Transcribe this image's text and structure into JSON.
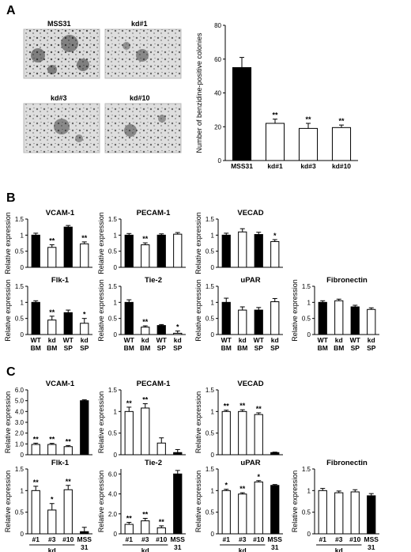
{
  "panels": {
    "A": "A",
    "B": "B",
    "C": "C"
  },
  "photos": [
    "MSS31",
    "kd#1",
    "kd#3",
    "kd#10"
  ],
  "sig": "**",
  "sig1": "*",
  "chart_data": [
    {
      "id": "A",
      "type": "bar",
      "ylabel": "Number of benzidine-positive colonies",
      "ylim": [
        0,
        80
      ],
      "yticks": [
        0,
        20,
        40,
        60,
        80
      ],
      "categories": [
        "MSS31",
        "kd#1",
        "kd#3",
        "kd#10"
      ],
      "values": [
        55,
        22,
        19,
        19.5
      ],
      "errors": [
        6,
        2.5,
        3,
        1.5
      ],
      "fills": [
        "#000000",
        "#ffffff",
        "#ffffff",
        "#ffffff"
      ],
      "significance": [
        "",
        "**",
        "**",
        "**"
      ]
    },
    {
      "id": "B",
      "type": "bar",
      "ylabel": "Relative expression",
      "categories_top": [
        "WT",
        "kd",
        "WT",
        "kd"
      ],
      "categories_bottom": [
        "BM",
        "BM",
        "SP",
        "SP"
      ],
      "fills": [
        "#000000",
        "#ffffff",
        "#000000",
        "#ffffff"
      ],
      "subplots": [
        {
          "title": "VCAM-1",
          "ylim": [
            0,
            1.5
          ],
          "yticks": [
            0,
            0.5,
            1.0,
            1.5
          ],
          "values": [
            1.0,
            0.62,
            1.25,
            0.73
          ],
          "errors": [
            0.06,
            0.08,
            0.05,
            0.06
          ],
          "significance": [
            "",
            "**",
            "",
            "**"
          ]
        },
        {
          "title": "PECAM-1",
          "ylim": [
            0,
            1.5
          ],
          "yticks": [
            0,
            0.5,
            1.0,
            1.5
          ],
          "values": [
            1.0,
            0.7,
            1.0,
            1.03
          ],
          "errors": [
            0.05,
            0.06,
            0.04,
            0.05
          ],
          "significance": [
            "",
            "**",
            "",
            ""
          ]
        },
        {
          "title": "VECAD",
          "ylim": [
            0,
            1.5
          ],
          "yticks": [
            0,
            0.5,
            1.0,
            1.5
          ],
          "values": [
            1.0,
            1.1,
            1.02,
            0.8
          ],
          "errors": [
            0.06,
            0.1,
            0.07,
            0.06
          ],
          "significance": [
            "",
            "",
            "",
            "*"
          ]
        },
        {
          "title": "Flk-1",
          "ylim": [
            0,
            1.5
          ],
          "yticks": [
            0,
            0.5,
            1.0,
            1.5
          ],
          "values": [
            1.0,
            0.45,
            0.68,
            0.35
          ],
          "errors": [
            0.05,
            0.12,
            0.08,
            0.15
          ],
          "significance": [
            "",
            "**",
            "",
            "*"
          ]
        },
        {
          "title": "Tie-2",
          "ylim": [
            0,
            1.5
          ],
          "yticks": [
            0,
            0.5,
            1.0,
            1.5
          ],
          "values": [
            1.0,
            0.23,
            0.28,
            0.04
          ],
          "errors": [
            0.08,
            0.04,
            0.03,
            0.07
          ],
          "significance": [
            "",
            "**",
            "",
            "*"
          ]
        },
        {
          "title": "uPAR",
          "ylim": [
            0,
            1.5
          ],
          "yticks": [
            0,
            0.5,
            1.0,
            1.5
          ],
          "values": [
            1.0,
            0.76,
            0.76,
            1.02
          ],
          "errors": [
            0.13,
            0.1,
            0.08,
            0.1
          ],
          "significance": [
            "",
            "",
            "",
            ""
          ]
        },
        {
          "title": "Fibronectin",
          "ylim": [
            0,
            1.5
          ],
          "yticks": [
            0,
            0.5,
            1.0,
            1.5
          ],
          "values": [
            1.0,
            1.05,
            0.86,
            0.78
          ],
          "errors": [
            0.05,
            0.05,
            0.05,
            0.05
          ],
          "significance": [
            "",
            "",
            "",
            ""
          ]
        }
      ]
    },
    {
      "id": "C",
      "type": "bar",
      "ylabel": "Relative expression",
      "categories": [
        "#1",
        "#3",
        "#10",
        "MSS"
      ],
      "categories_second_line": [
        "",
        "",
        "",
        "31"
      ],
      "group_label": "kd",
      "fills": [
        "#ffffff",
        "#ffffff",
        "#ffffff",
        "#000000"
      ],
      "subplots": [
        {
          "title": "VCAM-1",
          "ylim": [
            0,
            6
          ],
          "yticks": [
            0,
            1.0,
            2.0,
            3.0,
            4.0,
            5.0,
            6.0
          ],
          "ytick_labels": [
            "0",
            "1.0",
            "2.0",
            "3.0",
            "4.0",
            "5.0",
            "6.0"
          ],
          "values": [
            0.95,
            0.95,
            0.75,
            5.0
          ],
          "errors": [
            0.12,
            0.1,
            0.1,
            0.08
          ],
          "significance": [
            "**",
            "**",
            "**",
            ""
          ]
        },
        {
          "title": "PECAM-1",
          "ylim": [
            0,
            1.5
          ],
          "yticks": [
            0,
            0.5,
            1.0,
            1.5
          ],
          "values": [
            1.0,
            1.08,
            0.27,
            0.05
          ],
          "errors": [
            0.1,
            0.1,
            0.12,
            0.07
          ],
          "significance": [
            "**",
            "**",
            "",
            ""
          ]
        },
        {
          "title": "VECAD",
          "ylim": [
            0,
            1.5
          ],
          "yticks": [
            0,
            0.5,
            1.0,
            1.5
          ],
          "values": [
            1.0,
            1.0,
            0.93,
            0.05
          ],
          "errors": [
            0.03,
            0.04,
            0.04,
            0.01
          ],
          "significance": [
            "**",
            "**",
            "**",
            ""
          ]
        },
        {
          "title": "Flk-1",
          "ylim": [
            0,
            1.5
          ],
          "yticks": [
            0,
            0.5,
            1.0,
            1.5
          ],
          "values": [
            1.0,
            0.55,
            1.02,
            0.05
          ],
          "errors": [
            0.1,
            0.15,
            0.1,
            0.1
          ],
          "significance": [
            "**",
            "*",
            "**",
            ""
          ]
        },
        {
          "title": "Tie-2",
          "ylim": [
            0,
            6.5
          ],
          "yticks": [
            0,
            2.0,
            4.0,
            6.0
          ],
          "ytick_labels": [
            "0",
            "2.0",
            "4.0",
            "6.0"
          ],
          "values": [
            0.95,
            1.3,
            0.6,
            6.0
          ],
          "errors": [
            0.2,
            0.25,
            0.2,
            0.35
          ],
          "significance": [
            "**",
            "**",
            "**",
            ""
          ]
        },
        {
          "title": "uPAR",
          "ylim": [
            0,
            1.5
          ],
          "yticks": [
            0,
            0.5,
            1.0,
            1.5
          ],
          "values": [
            1.0,
            0.92,
            1.2,
            1.12
          ],
          "errors": [
            0.03,
            0.03,
            0.03,
            0.02
          ],
          "significance": [
            "*",
            "**",
            "*",
            ""
          ]
        },
        {
          "title": "Fibronectin",
          "ylim": [
            0,
            1.5
          ],
          "yticks": [
            0,
            0.5,
            1.0,
            1.5
          ],
          "values": [
            1.0,
            0.95,
            0.97,
            0.88
          ],
          "errors": [
            0.05,
            0.04,
            0.05,
            0.05
          ],
          "significance": [
            "",
            "",
            "",
            ""
          ]
        }
      ]
    }
  ]
}
